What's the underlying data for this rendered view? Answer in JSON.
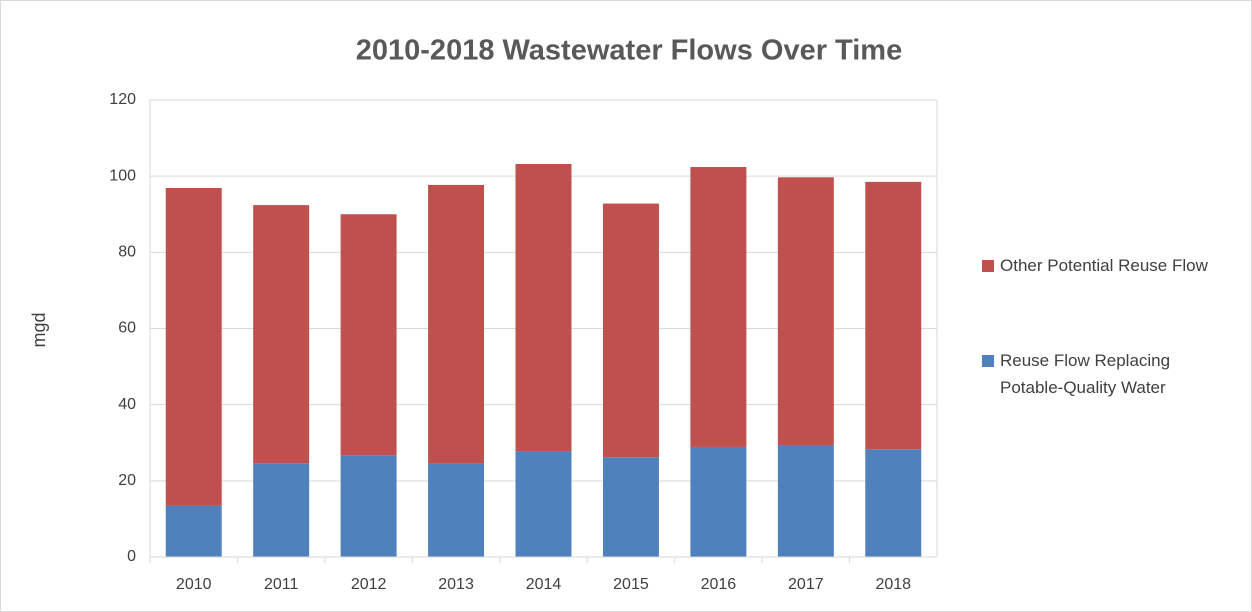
{
  "chart_data": {
    "type": "stacked_bar",
    "title": "2010-2018 Wastewater Flows Over Time",
    "y_label": "mgd",
    "categories": [
      "2010",
      "2011",
      "2012",
      "2013",
      "2014",
      "2015",
      "2016",
      "2017",
      "2018"
    ],
    "series": [
      {
        "name": "Reuse Flow Replacing Potable-Quality Water",
        "color": "#4f81bd",
        "values": [
          13.5,
          24.6,
          26.7,
          24.5,
          27.8,
          26.2,
          28.9,
          29.4,
          28.3
        ]
      },
      {
        "name": "Other Potential Reuse Flow",
        "color": "#c0504d",
        "values": [
          83.4,
          67.8,
          63.3,
          73.2,
          75.4,
          66.6,
          73.5,
          70.3,
          70.2
        ]
      }
    ],
    "ylim": [
      0,
      120
    ],
    "yticks": [
      0,
      20,
      40,
      60,
      80,
      100,
      120
    ],
    "grid": true,
    "legend": "right"
  }
}
